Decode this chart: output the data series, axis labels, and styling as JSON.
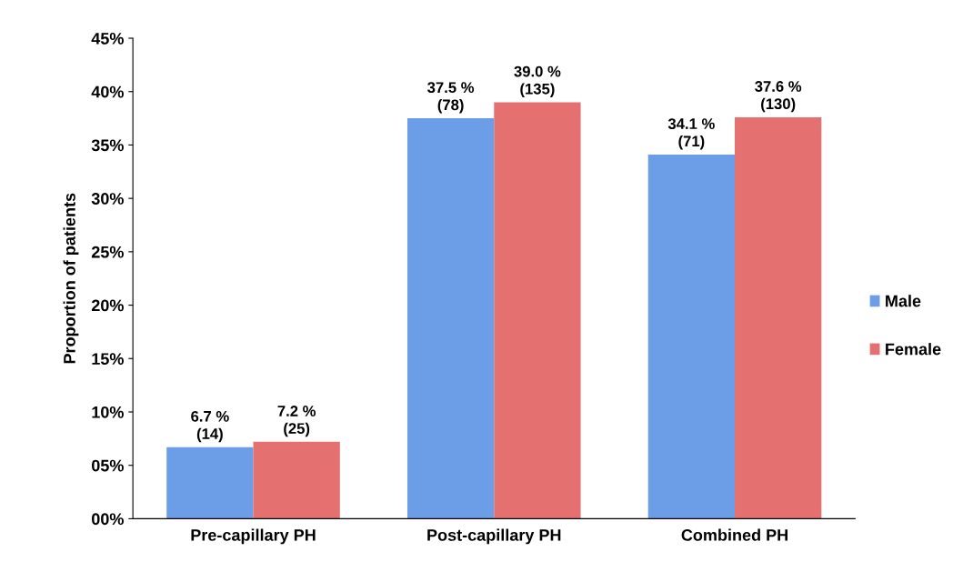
{
  "chart_data": {
    "type": "bar",
    "ylabel": "Proportion of patients",
    "categories": [
      "Pre-capillary PH",
      "Post-capillary PH",
      "Combined PH"
    ],
    "series": [
      {
        "name": "Male",
        "color": "#6b9ee6",
        "values": [
          6.7,
          37.5,
          34.1
        ],
        "value_labels": [
          "6.7 %\n(14)",
          "37.5 %\n(78)",
          "34.1 %\n(71)"
        ]
      },
      {
        "name": "Female",
        "color": "#e57070",
        "values": [
          7.2,
          39.0,
          37.6
        ],
        "value_labels": [
          "7.2 %\n(25)",
          "39.0 %\n(135)",
          "37.6 %\n(130)"
        ]
      }
    ],
    "ylim": [
      0,
      45
    ],
    "yticks": [
      {
        "value": 0,
        "label": "00%"
      },
      {
        "value": 5,
        "label": "05%"
      },
      {
        "value": 10,
        "label": "10%"
      },
      {
        "value": 15,
        "label": "15%"
      },
      {
        "value": 20,
        "label": "20%"
      },
      {
        "value": 25,
        "label": "25%"
      },
      {
        "value": 30,
        "label": "30%"
      },
      {
        "value": 35,
        "label": "35%"
      },
      {
        "value": 40,
        "label": "40%"
      },
      {
        "value": 45,
        "label": "45%"
      }
    ],
    "grid": false,
    "legend": "right"
  }
}
